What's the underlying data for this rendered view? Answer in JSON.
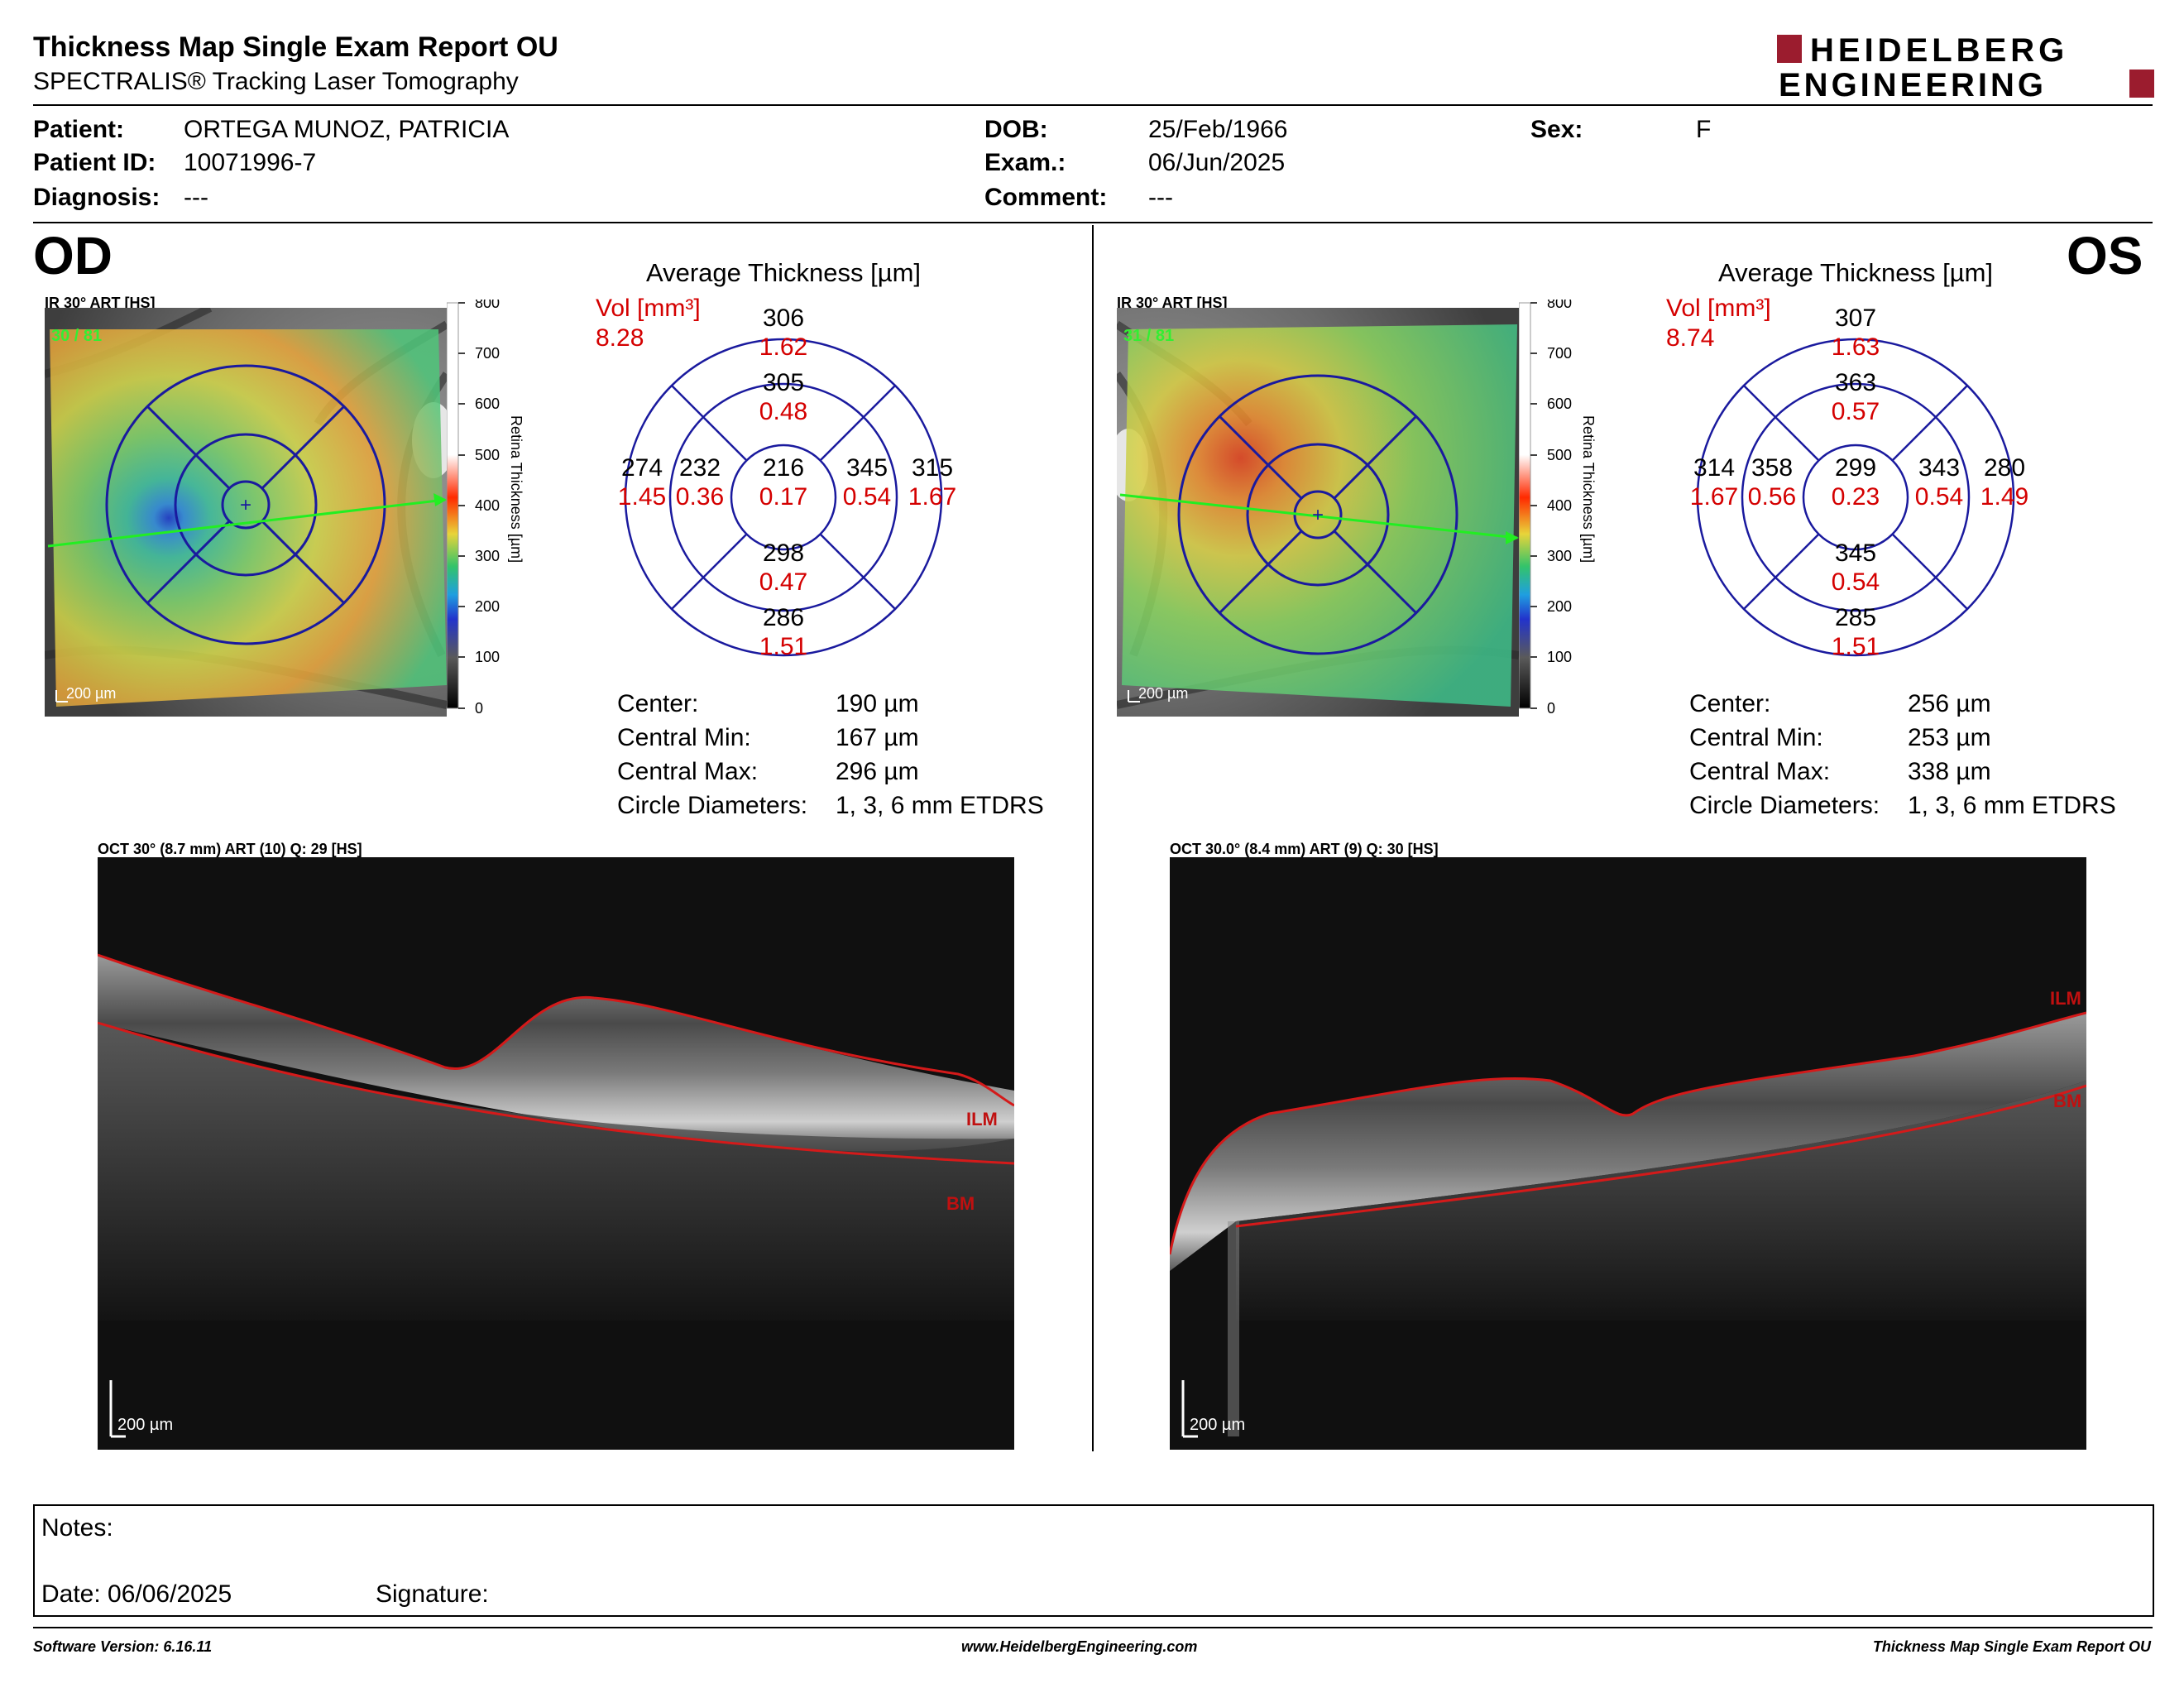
{
  "header": {
    "title": "Thickness Map Single Exam Report OU",
    "subtitle": "SPECTRALIS® Tracking Laser Tomography",
    "logo_line1": "HEIDELBERG",
    "logo_line2": "ENGINEERING",
    "logo_color": "#9b1c2e"
  },
  "patient": {
    "patient_label": "Patient:",
    "patient_value": "ORTEGA MUNOZ, PATRICIA",
    "id_label": "Patient ID:",
    "id_value": "10071996-7",
    "diagnosis_label": "Diagnosis:",
    "diagnosis_value": "---",
    "dob_label": "DOB:",
    "dob_value": "25/Feb/1966",
    "exam_label": "Exam.:",
    "exam_value": "06/Jun/2025",
    "comment_label": "Comment:",
    "comment_value": "---",
    "sex_label": "Sex:",
    "sex_value": "F"
  },
  "colorbar": {
    "label": "Retina  Thickness [µm]",
    "ticks": [
      "800",
      "700",
      "600",
      "500",
      "400",
      "300",
      "200",
      "100",
      "0"
    ]
  },
  "od": {
    "eye_label": "OD",
    "ir_label": "IR 30° ART [HS]",
    "ir_counter": "30 / 81",
    "scale_label": "200 µm",
    "avg_title": "Average Thickness [µm]",
    "vol_label": "Vol [mm³]",
    "vol_value": "8.28",
    "sectors": {
      "outer_top": {
        "t": "306",
        "v": "1.62"
      },
      "inner_top": {
        "t": "305",
        "v": "0.48"
      },
      "outer_left": {
        "t": "274",
        "v": "1.45"
      },
      "inner_left": {
        "t": "232",
        "v": "0.36"
      },
      "center": {
        "t": "216",
        "v": "0.17"
      },
      "inner_right": {
        "t": "345",
        "v": "0.54"
      },
      "outer_right": {
        "t": "315",
        "v": "1.67"
      },
      "inner_bottom": {
        "t": "298",
        "v": "0.47"
      },
      "outer_bottom": {
        "t": "286",
        "v": "1.51"
      }
    },
    "stats": [
      {
        "label": "Center:",
        "value": "190 µm"
      },
      {
        "label": "Central Min:",
        "value": "167 µm"
      },
      {
        "label": "Central Max:",
        "value": "296 µm"
      },
      {
        "label": "Circle Diameters:",
        "value": "1, 3, 6 mm ETDRS"
      }
    ],
    "oct_label": "OCT 30° (8.7 mm) ART (10) Q: 29 [HS]",
    "oct_scale": "200 µm",
    "ilm": "ILM",
    "bm": "BM"
  },
  "os": {
    "eye_label": "OS",
    "ir_label": "IR 30° ART [HS]",
    "ir_counter": "31 / 81",
    "scale_label": "200 µm",
    "avg_title": "Average Thickness [µm]",
    "vol_label": "Vol [mm³]",
    "vol_value": "8.74",
    "sectors": {
      "outer_top": {
        "t": "307",
        "v": "1.63"
      },
      "inner_top": {
        "t": "363",
        "v": "0.57"
      },
      "outer_left": {
        "t": "314",
        "v": "1.67"
      },
      "inner_left": {
        "t": "358",
        "v": "0.56"
      },
      "center": {
        "t": "299",
        "v": "0.23"
      },
      "inner_right": {
        "t": "343",
        "v": "0.54"
      },
      "outer_right": {
        "t": "280",
        "v": "1.49"
      },
      "inner_bottom": {
        "t": "345",
        "v": "0.54"
      },
      "outer_bottom": {
        "t": "285",
        "v": "1.51"
      }
    },
    "stats": [
      {
        "label": "Center:",
        "value": "256 µm"
      },
      {
        "label": "Central Min:",
        "value": "253 µm"
      },
      {
        "label": "Central Max:",
        "value": "338 µm"
      },
      {
        "label": "Circle Diameters:",
        "value": "1, 3, 6 mm ETDRS"
      }
    ],
    "oct_label": "OCT 30.0° (8.4 mm) ART (9) Q: 30 [HS]",
    "oct_scale": "200 µm",
    "ilm": "ILM",
    "bm": "BM"
  },
  "notes": {
    "notes_label": "Notes:",
    "date_label": "Date: 06/06/2025",
    "signature_label": "Signature:"
  },
  "footer": {
    "software": "Software Version: 6.16.11",
    "website": "www.HeidelbergEngineering.com",
    "report": "Thickness Map Single Exam Report OU"
  },
  "colors": {
    "value_red": "#d40000",
    "circle_blue": "#1a1a9e"
  }
}
